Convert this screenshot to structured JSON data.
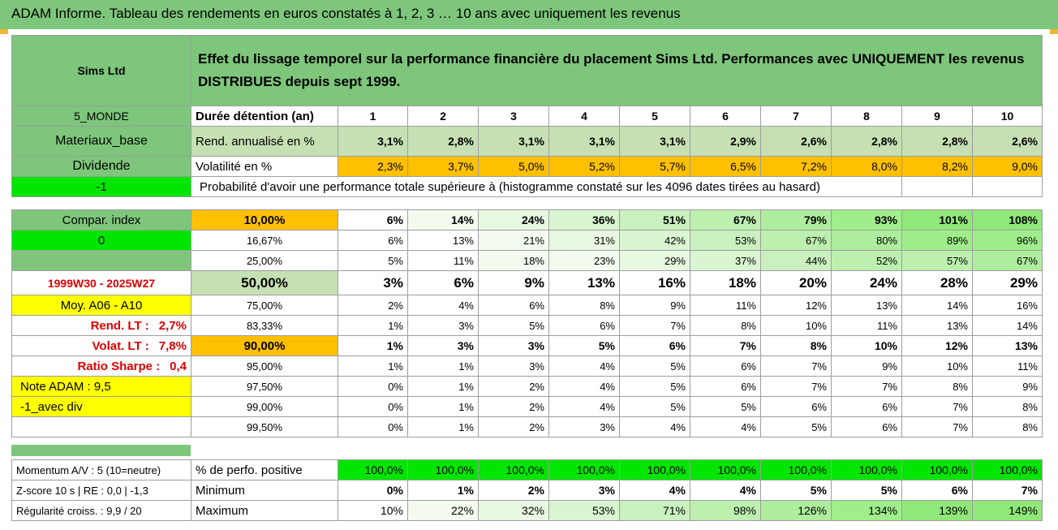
{
  "title": "ADAM Informe. Tableau des rendements en euros constatés à 1, 2, 3 … 10 ans avec uniquement les revenus",
  "company": "Sims Ltd",
  "header_text": "Effet du lissage temporel sur la performance financière du placement Sims Ltd. Performances avec UNIQUEMENT les revenus DISTRIBUES depuis sept 1999.",
  "left": {
    "monde": "5_MONDE",
    "sector": "Materiaux_base",
    "dividende": "Dividende",
    "neg1": "-1",
    "compar": "Compar. index",
    "zero": "0",
    "period": "1999W30 - 2025W27",
    "moy": "Moy. A06 - A10",
    "rend_lt_label": "Rend. LT :",
    "rend_lt_val": "2,7%",
    "volat_lt_label": "Volat. LT :",
    "volat_lt_val": "7,8%",
    "sharpe_label": "Ratio Sharpe :",
    "sharpe_val": "0,4",
    "note": "Note ADAM : 9,5",
    "div_label": "-1_avec div",
    "momentum": "Momentum A/V : 5 (10=neutre)",
    "zscore": "Z-score 10 s | RE : 0,0 | -1,3",
    "regularite": "Régularité croiss. : 9,9 / 20"
  },
  "row_labels": {
    "duree": "Durée détention (an)",
    "rend": "Rend. annualisé en %",
    "vol": "Volatilité en %",
    "proba": "Probabilité d'avoir une performance totale supérieure à (histogramme constaté sur les 4096 dates tirées au hasard)",
    "pos": "% de perfo. positive",
    "min": "Minimum",
    "max": "Maximum"
  },
  "years": [
    "1",
    "2",
    "3",
    "4",
    "5",
    "6",
    "7",
    "8",
    "9",
    "10"
  ],
  "rend": [
    "3,1%",
    "2,8%",
    "3,1%",
    "3,1%",
    "3,1%",
    "2,9%",
    "2,6%",
    "2,8%",
    "2,8%",
    "2,6%"
  ],
  "vol": [
    "2,3%",
    "3,7%",
    "5,0%",
    "5,2%",
    "5,7%",
    "6,5%",
    "7,2%",
    "8,0%",
    "8,2%",
    "9,0%"
  ],
  "quantiles": [
    {
      "q": "10,00%",
      "vals": [
        "6%",
        "14%",
        "24%",
        "36%",
        "51%",
        "67%",
        "79%",
        "93%",
        "101%",
        "108%"
      ]
    },
    {
      "q": "16,67%",
      "vals": [
        "6%",
        "13%",
        "21%",
        "31%",
        "42%",
        "53%",
        "67%",
        "80%",
        "89%",
        "96%"
      ]
    },
    {
      "q": "25,00%",
      "vals": [
        "5%",
        "11%",
        "18%",
        "23%",
        "29%",
        "37%",
        "44%",
        "52%",
        "57%",
        "67%"
      ]
    },
    {
      "q": "50,00%",
      "vals": [
        "3%",
        "6%",
        "9%",
        "13%",
        "16%",
        "18%",
        "20%",
        "24%",
        "28%",
        "29%"
      ]
    },
    {
      "q": "75,00%",
      "vals": [
        "2%",
        "4%",
        "6%",
        "8%",
        "9%",
        "11%",
        "12%",
        "13%",
        "14%",
        "16%"
      ]
    },
    {
      "q": "83,33%",
      "vals": [
        "1%",
        "3%",
        "5%",
        "6%",
        "7%",
        "8%",
        "10%",
        "11%",
        "13%",
        "14%"
      ]
    },
    {
      "q": "90,00%",
      "vals": [
        "1%",
        "3%",
        "3%",
        "5%",
        "6%",
        "7%",
        "8%",
        "10%",
        "12%",
        "13%"
      ]
    },
    {
      "q": "95,00%",
      "vals": [
        "1%",
        "1%",
        "3%",
        "4%",
        "5%",
        "6%",
        "7%",
        "9%",
        "10%",
        "11%"
      ]
    },
    {
      "q": "97,50%",
      "vals": [
        "0%",
        "1%",
        "2%",
        "4%",
        "5%",
        "6%",
        "7%",
        "7%",
        "8%",
        "9%"
      ]
    },
    {
      "q": "99,00%",
      "vals": [
        "0%",
        "1%",
        "2%",
        "4%",
        "5%",
        "5%",
        "6%",
        "6%",
        "7%",
        "8%"
      ]
    },
    {
      "q": "99,50%",
      "vals": [
        "0%",
        "1%",
        "2%",
        "3%",
        "4%",
        "4%",
        "5%",
        "6%",
        "7%",
        "8%"
      ]
    }
  ],
  "pos": [
    "100,0%",
    "100,0%",
    "100,0%",
    "100,0%",
    "100,0%",
    "100,0%",
    "100,0%",
    "100,0%",
    "100,0%",
    "100,0%"
  ],
  "min": [
    "0%",
    "1%",
    "2%",
    "3%",
    "4%",
    "4%",
    "5%",
    "5%",
    "6%",
    "7%"
  ],
  "max": [
    "10%",
    "22%",
    "32%",
    "53%",
    "71%",
    "98%",
    "126%",
    "134%",
    "139%",
    "149%"
  ],
  "colors": {
    "title_green": "#7dc67b",
    "bright_green": "#00e600",
    "yellow": "#ffff00",
    "orange": "#ffc000",
    "red_text": "#e00000"
  }
}
